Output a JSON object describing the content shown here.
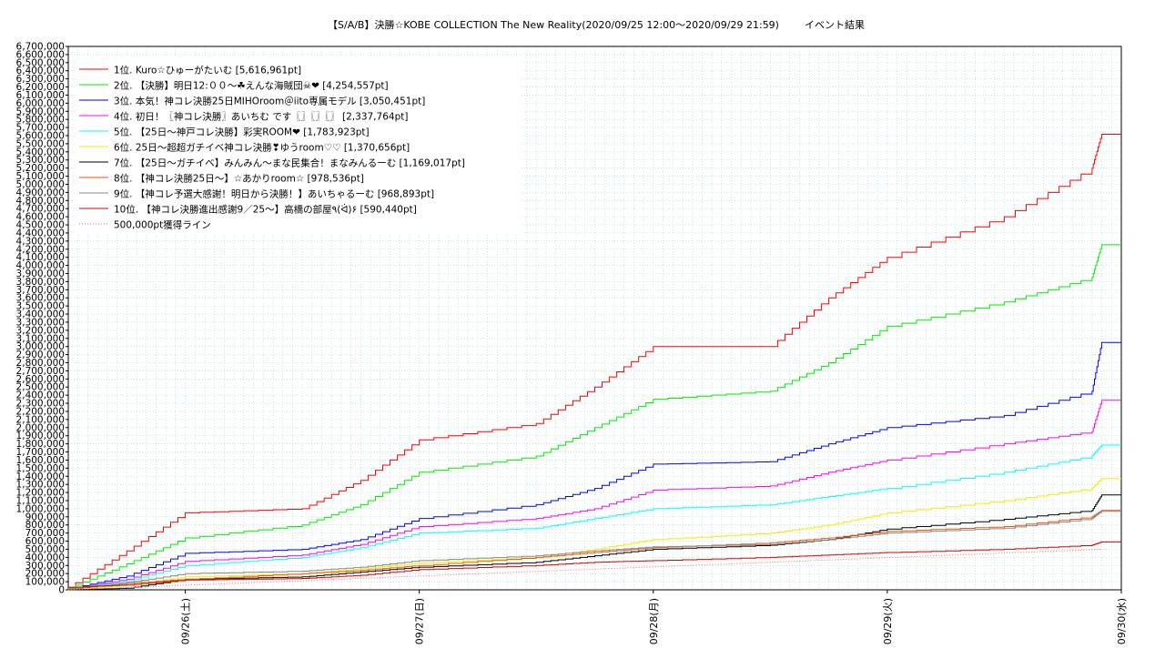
{
  "chart_data": {
    "type": "line",
    "title": "【S/A/B】決勝☆KOBE COLLECTION The New Reality(2020/09/25 12:00〜2020/09/29 21:59)",
    "subtitle": "イベント結果",
    "xlabel": "",
    "ylabel": "",
    "x_ticks": [
      "09/26(土)",
      "09/27(日)",
      "09/28(月)",
      "09/29(火)",
      "09/30(水)"
    ],
    "x_range": [
      "2020-09-25 12:00",
      "2020-09-30 00:00"
    ],
    "ylim": [
      0,
      6700000
    ],
    "y_tick_step": 100000,
    "grid": true,
    "legend_position": "top-left",
    "series": [
      {
        "name": "1位. Kuro☆ひゅーがたいむ [5,616,961pt]",
        "color": "#ff0000",
        "x": [
          "09/25 12:00",
          "09/25 18:00",
          "09/26 00:00",
          "09/26 12:00",
          "09/26 18:00",
          "09/27 00:00",
          "09/27 12:00",
          "09/27 18:00",
          "09/28 00:00",
          "09/28 12:00",
          "09/28 18:00",
          "09/29 00:00",
          "09/29 12:00",
          "09/29 21:00",
          "09/29 21:59"
        ],
        "values": [
          30000,
          480000,
          950000,
          1000000,
          1350000,
          1850000,
          2050000,
          2500000,
          3000000,
          3000000,
          3600000,
          4100000,
          4600000,
          5200000,
          5616961
        ]
      },
      {
        "name": "2位. 【決勝】明日12:００〜☘えんな海賊団☠❤ [4,254,557pt]",
        "color": "#00ee00",
        "x": [
          "09/25 12:00",
          "09/25 18:00",
          "09/26 00:00",
          "09/26 12:00",
          "09/26 18:00",
          "09/27 00:00",
          "09/27 12:00",
          "09/27 18:00",
          "09/28 00:00",
          "09/28 12:00",
          "09/28 18:00",
          "09/29 00:00",
          "09/29 12:00",
          "09/29 21:00",
          "09/29 21:59"
        ],
        "values": [
          20000,
          320000,
          640000,
          800000,
          1050000,
          1450000,
          1650000,
          2000000,
          2350000,
          2450000,
          2800000,
          3250000,
          3550000,
          3850000,
          4254557
        ]
      },
      {
        "name": "3位. 本気！神コレ決勝25日MIHOroom＠iito専属モデル [3,050,451pt]",
        "color": "#0000ff",
        "x": [
          "09/25 12:00",
          "09/25 18:00",
          "09/26 00:00",
          "09/26 12:00",
          "09/26 18:00",
          "09/27 00:00",
          "09/27 12:00",
          "09/27 18:00",
          "09/28 00:00",
          "09/28 12:00",
          "09/28 18:00",
          "09/29 00:00",
          "09/29 12:00",
          "09/29 21:00",
          "09/29 21:59"
        ],
        "values": [
          10000,
          170000,
          450000,
          500000,
          620000,
          880000,
          1050000,
          1250000,
          1550000,
          1580000,
          1800000,
          2000000,
          2150000,
          2450000,
          3050451
        ]
      },
      {
        "name": "4位. 初日！〖神コレ決勝〗あいちむ です〖〗〖〗〖〗 [2,337,764pt]",
        "color": "#ff00ff",
        "x": [
          "09/25 12:00",
          "09/25 18:00",
          "09/26 00:00",
          "09/26 12:00",
          "09/26 18:00",
          "09/27 00:00",
          "09/27 12:00",
          "09/27 18:00",
          "09/28 00:00",
          "09/28 12:00",
          "09/28 18:00",
          "09/29 00:00",
          "09/29 12:00",
          "09/29 21:00",
          "09/29 21:59"
        ],
        "values": [
          10000,
          130000,
          350000,
          430000,
          560000,
          780000,
          880000,
          1000000,
          1230000,
          1280000,
          1450000,
          1600000,
          1800000,
          1950000,
          2337764
        ]
      },
      {
        "name": "5位. 【25日〜神戸コレ決勝】彩実ROOM❤ [1,783,923pt]",
        "color": "#00ffff",
        "x": [
          "09/25 12:00",
          "09/25 18:00",
          "09/26 00:00",
          "09/26 12:00",
          "09/26 18:00",
          "09/27 00:00",
          "09/27 12:00",
          "09/27 18:00",
          "09/28 00:00",
          "09/28 12:00",
          "09/28 18:00",
          "09/29 00:00",
          "09/29 12:00",
          "09/29 21:00",
          "09/29 21:59"
        ],
        "values": [
          10000,
          110000,
          300000,
          400000,
          520000,
          700000,
          760000,
          880000,
          1000000,
          1050000,
          1150000,
          1250000,
          1450000,
          1650000,
          1783923
        ]
      },
      {
        "name": "6位. 25日〜超超ガチイベ神コレ決勝❣ゆうroom♡♡ [1,370,656pt]",
        "color": "#eeee00",
        "x": [
          "09/25 12:00",
          "09/25 18:00",
          "09/26 00:00",
          "09/26 12:00",
          "09/26 18:00",
          "09/27 00:00",
          "09/27 12:00",
          "09/27 18:00",
          "09/28 00:00",
          "09/28 12:00",
          "09/28 18:00",
          "09/29 00:00",
          "09/29 12:00",
          "09/29 21:00",
          "09/29 21:59"
        ],
        "values": [
          0,
          60000,
          160000,
          200000,
          260000,
          330000,
          400000,
          500000,
          620000,
          700000,
          800000,
          950000,
          1100000,
          1250000,
          1370656
        ]
      },
      {
        "name": "7位. 【25日〜ガチイベ】みんみん〜まな民集合！まなみんるーむ [1,169,017pt]",
        "color": "#000000",
        "x": [
          "09/25 12:00",
          "09/25 18:00",
          "09/26 00:00",
          "09/26 12:00",
          "09/26 18:00",
          "09/27 00:00",
          "09/27 12:00",
          "09/27 18:00",
          "09/28 00:00",
          "09/28 12:00",
          "09/28 18:00",
          "09/29 00:00",
          "09/29 12:00",
          "09/29 21:00",
          "09/29 21:59"
        ],
        "values": [
          0,
          20000,
          130000,
          160000,
          220000,
          280000,
          340000,
          420000,
          500000,
          550000,
          620000,
          750000,
          870000,
          980000,
          1169017
        ]
      },
      {
        "name": "8位. 【神コレ決勝25日〜】☆あかりroom☆ [978,536pt]",
        "color": "#ee5511",
        "x": [
          "09/25 12:00",
          "09/25 18:00",
          "09/26 00:00",
          "09/26 12:00",
          "09/26 18:00",
          "09/27 00:00",
          "09/27 12:00",
          "09/27 18:00",
          "09/28 00:00",
          "09/28 12:00",
          "09/28 18:00",
          "09/29 00:00",
          "09/29 12:00",
          "09/29 21:00",
          "09/29 21:59"
        ],
        "values": [
          10000,
          80000,
          130000,
          200000,
          240000,
          300000,
          400000,
          460000,
          520000,
          580000,
          640000,
          720000,
          780000,
          900000,
          978536
        ]
      },
      {
        "name": "9位. 【神コレ予選大感謝！明日から決勝！】あいちゃるーむ [968,893pt]",
        "color": "#888888",
        "x": [
          "09/25 12:00",
          "09/25 18:00",
          "09/26 00:00",
          "09/26 12:00",
          "09/26 18:00",
          "09/27 00:00",
          "09/27 12:00",
          "09/27 18:00",
          "09/28 00:00",
          "09/28 12:00",
          "09/28 18:00",
          "09/29 00:00",
          "09/29 12:00",
          "09/29 21:00",
          "09/29 21:59"
        ],
        "values": [
          10000,
          90000,
          200000,
          230000,
          280000,
          360000,
          420000,
          480000,
          530000,
          560000,
          620000,
          700000,
          760000,
          880000,
          968893
        ]
      },
      {
        "name": "10位. 【神コレ決勝進出感謝9／25〜】高橋の部屋٩(ᐛ)۶ [590,440pt]",
        "color": "#dd0000",
        "x": [
          "09/25 12:00",
          "09/25 18:00",
          "09/26 00:00",
          "09/26 12:00",
          "09/26 18:00",
          "09/27 00:00",
          "09/27 12:00",
          "09/27 18:00",
          "09/28 00:00",
          "09/28 12:00",
          "09/28 18:00",
          "09/29 00:00",
          "09/29 12:00",
          "09/29 21:00",
          "09/29 21:59"
        ],
        "values": [
          30000,
          60000,
          120000,
          140000,
          180000,
          250000,
          300000,
          340000,
          360000,
          400000,
          430000,
          460000,
          500000,
          550000,
          590440
        ]
      },
      {
        "name": "500,000pt獲得ライン",
        "color": "#ff6666",
        "dashed": true,
        "x": [
          "09/25 12:00",
          "09/29 21:59"
        ],
        "values": [
          0,
          500000
        ]
      }
    ]
  }
}
